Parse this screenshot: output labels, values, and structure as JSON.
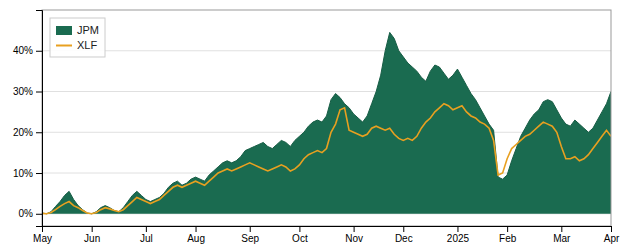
{
  "chart_data": {
    "type": "line",
    "categories": [
      "May",
      null,
      null,
      null,
      null,
      null,
      null,
      null,
      null,
      null,
      null,
      "Jun",
      null,
      null,
      null,
      null,
      null,
      null,
      null,
      null,
      null,
      null,
      null,
      "Jul",
      null,
      null,
      null,
      null,
      null,
      null,
      null,
      null,
      null,
      null,
      "Aug",
      null,
      null,
      null,
      null,
      null,
      null,
      null,
      null,
      null,
      null,
      null,
      "Sep",
      null,
      null,
      null,
      null,
      null,
      null,
      null,
      null,
      null,
      null,
      "Oct",
      null,
      null,
      null,
      null,
      null,
      null,
      null,
      null,
      null,
      null,
      null,
      "Nov",
      null,
      null,
      null,
      null,
      null,
      null,
      null,
      null,
      null,
      null,
      "Dec",
      null,
      null,
      null,
      null,
      null,
      null,
      null,
      null,
      null,
      null,
      null,
      "2025",
      null,
      null,
      null,
      null,
      null,
      null,
      null,
      null,
      null,
      null,
      "Feb",
      null,
      null,
      null,
      null,
      null,
      null,
      null,
      null,
      null,
      null,
      null,
      "Mar",
      null,
      null,
      null,
      null,
      null,
      null,
      null,
      null,
      null,
      null,
      "Apr"
    ],
    "series": [
      {
        "name": "JPM",
        "type": "area",
        "color": "#1a6b50",
        "values": [
          0.2,
          0.0,
          0.5,
          1.8,
          3.0,
          4.5,
          5.5,
          3.5,
          2.0,
          1.0,
          0.2,
          0.0,
          0.5,
          1.5,
          2.0,
          1.5,
          0.8,
          0.5,
          1.5,
          3.0,
          4.5,
          5.5,
          4.5,
          3.5,
          3.0,
          3.5,
          4.0,
          5.0,
          6.5,
          7.5,
          8.0,
          7.0,
          7.5,
          8.5,
          9.0,
          8.5,
          8.0,
          9.5,
          10.5,
          11.5,
          12.5,
          13.0,
          12.5,
          13.0,
          14.0,
          15.5,
          16.0,
          16.5,
          17.0,
          17.5,
          16.5,
          16.0,
          17.0,
          18.0,
          17.5,
          16.5,
          18.0,
          19.0,
          20.0,
          21.5,
          22.5,
          23.0,
          22.5,
          24.0,
          28.0,
          29.5,
          28.5,
          27.0,
          26.0,
          24.5,
          23.5,
          22.5,
          24.0,
          27.0,
          30.0,
          34.0,
          40.0,
          44.5,
          43.0,
          40.0,
          38.5,
          37.0,
          36.0,
          35.0,
          33.5,
          32.5,
          35.0,
          36.5,
          36.0,
          34.5,
          33.0,
          34.0,
          35.5,
          33.5,
          31.5,
          29.5,
          28.0,
          26.0,
          24.0,
          22.0,
          20.5,
          9.0,
          8.5,
          9.5,
          13.0,
          16.0,
          19.0,
          21.0,
          23.0,
          24.5,
          25.5,
          27.5,
          28.0,
          27.5,
          25.5,
          23.5,
          22.0,
          21.5,
          23.0,
          22.0,
          21.0,
          20.0,
          21.0,
          23.0,
          25.0,
          27.0,
          30.0
        ]
      },
      {
        "name": "XLF",
        "type": "line",
        "color": "#e8a020",
        "values": [
          0.1,
          0.0,
          0.3,
          1.0,
          1.8,
          2.5,
          3.0,
          2.0,
          1.5,
          0.8,
          0.2,
          0.0,
          0.3,
          1.0,
          1.5,
          1.2,
          0.8,
          0.5,
          1.0,
          2.0,
          3.0,
          4.0,
          3.5,
          3.0,
          2.5,
          3.0,
          3.5,
          4.5,
          5.5,
          6.5,
          7.0,
          6.5,
          7.0,
          7.5,
          8.0,
          7.5,
          7.0,
          8.0,
          9.0,
          10.0,
          10.5,
          11.0,
          10.5,
          11.0,
          11.5,
          12.0,
          12.5,
          12.0,
          11.5,
          11.0,
          10.5,
          11.0,
          11.5,
          12.0,
          11.5,
          10.5,
          11.0,
          12.0,
          13.5,
          14.5,
          15.0,
          15.5,
          15.0,
          16.0,
          20.0,
          22.0,
          25.5,
          26.0,
          20.5,
          20.0,
          19.5,
          19.0,
          19.5,
          21.0,
          21.5,
          21.0,
          20.5,
          21.0,
          19.5,
          18.5,
          18.0,
          18.5,
          18.0,
          19.0,
          21.0,
          22.5,
          23.5,
          25.0,
          26.0,
          27.0,
          26.5,
          25.5,
          26.0,
          26.5,
          25.0,
          24.0,
          23.5,
          22.5,
          22.0,
          21.0,
          18.0,
          9.5,
          10.0,
          13.5,
          16.0,
          17.0,
          18.0,
          19.0,
          19.5,
          20.5,
          21.5,
          22.5,
          22.0,
          21.5,
          20.0,
          16.5,
          13.5,
          13.5,
          14.0,
          13.0,
          13.5,
          14.5,
          16.0,
          17.5,
          19.0,
          20.5,
          19.0
        ]
      }
    ],
    "ylim": [
      -3,
      50
    ],
    "yticks": [
      {
        "value": 0,
        "label": "0%"
      },
      {
        "value": 10,
        "label": "10%"
      },
      {
        "value": 20,
        "label": "20%"
      },
      {
        "value": 30,
        "label": "30%"
      },
      {
        "value": 40,
        "label": "40%"
      }
    ],
    "grid": true,
    "legend": "top-left"
  }
}
